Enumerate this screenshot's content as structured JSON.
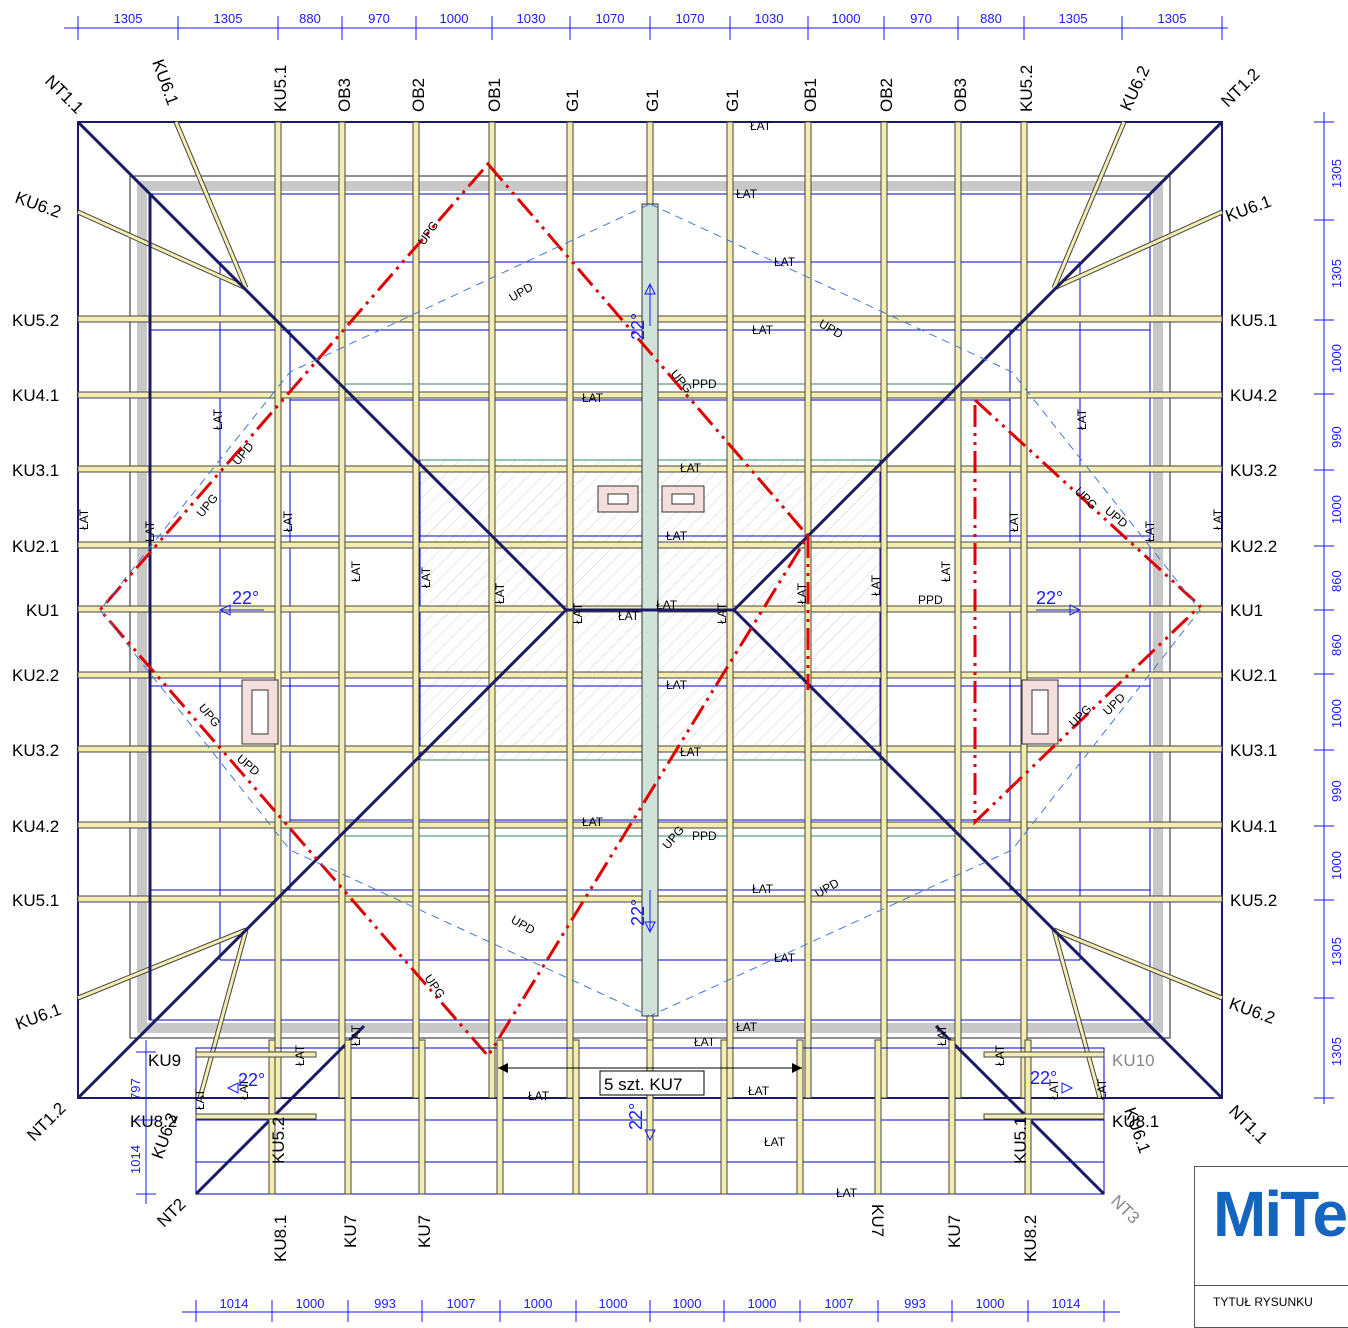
{
  "dims_top": [
    "1305",
    "1305",
    "880",
    "970",
    "1000",
    "1030",
    "1070",
    "1070",
    "1030",
    "1000",
    "970",
    "880",
    "1305",
    "1305"
  ],
  "dims_bottom": [
    "1014",
    "1000",
    "993",
    "1007",
    "1000",
    "1000",
    "1000",
    "1000",
    "1007",
    "993",
    "1000",
    "1014"
  ],
  "dims_right": [
    "1305",
    "1305",
    "1000",
    "990",
    "1000",
    "860",
    "860",
    "1000",
    "990",
    "1000",
    "1305",
    "1305"
  ],
  "dims_left_small": [
    "797",
    "1014"
  ],
  "top_labels": [
    "NT1.1",
    "KU6.1",
    "KU5.1",
    "OB3",
    "OB2",
    "OB1",
    "G1",
    "G1",
    "G1",
    "OB1",
    "OB2",
    "OB3",
    "KU5.2",
    "KU6.2",
    "NT1.2"
  ],
  "left_labels": [
    "KU6.2",
    "KU5.2",
    "KU4.1",
    "KU3.1",
    "KU2.1",
    "KU1",
    "KU2.2",
    "KU3.2",
    "KU4.2",
    "KU5.1",
    "KU6.1"
  ],
  "right_labels": [
    "KU6.1",
    "KU5.1",
    "KU4.2",
    "KU3.2",
    "KU2.2",
    "KU1",
    "KU2.1",
    "KU3.1",
    "KU4.1",
    "KU5.2",
    "KU6.2"
  ],
  "bottom_labels": [
    "NT1.2",
    "NT2",
    "KU8.1",
    "KU7",
    "KU7",
    "KU7",
    "KU7",
    "KU8.2",
    "NT3",
    "NT1.1"
  ],
  "lower_wing_labels": [
    "KU9",
    "KU8.2",
    "KU6.2",
    "KU5.2",
    "KU10",
    "KU8.1",
    "KU6.1",
    "KU5.1"
  ],
  "member_tags": {
    "lat": "ŁAT",
    "upg": "UPG",
    "upd": "UPD",
    "ppd": "PPD"
  },
  "angle": "22°",
  "ku7_note": "5 szt. KU7",
  "logo": "MiTe",
  "title_label": "TYTUŁ RYSUNKU",
  "colors": {
    "timber": "#f3eeb0",
    "grid": "#0000cc",
    "hip": "#1a1a66",
    "valley": "#e00000",
    "dim": "#1a1aff",
    "wall": "#c8c8c8"
  }
}
